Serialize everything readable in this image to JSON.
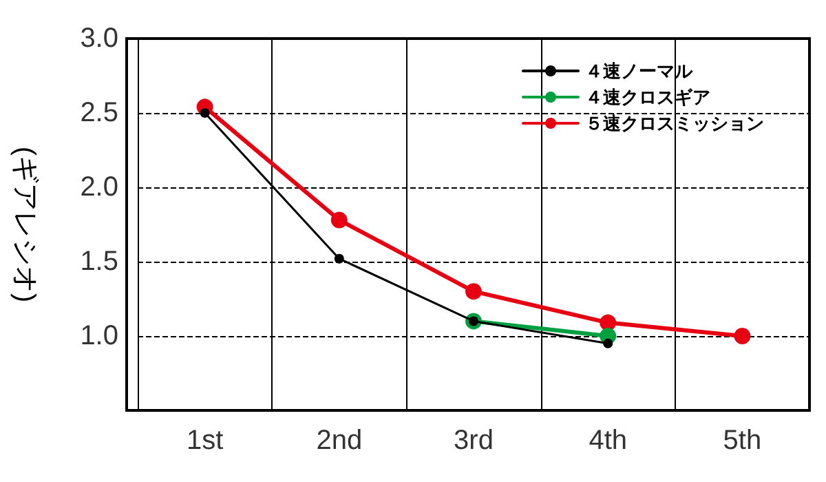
{
  "chart_data": {
    "type": "line",
    "ylabel": "(ギアレシオ)",
    "categories": [
      "1st",
      "2nd",
      "3rd",
      "4th",
      "5th"
    ],
    "series": [
      {
        "name": "４速ノーマル",
        "color": "#000000",
        "values": [
          2.5,
          1.52,
          1.1,
          0.95,
          null
        ]
      },
      {
        "name": "４速クロスギア",
        "color": "#00a040",
        "values": [
          null,
          null,
          1.1,
          1.0,
          null
        ]
      },
      {
        "name": "５速クロスミッション",
        "color": "#e60012",
        "values": [
          2.54,
          1.78,
          1.3,
          1.09,
          1.0
        ]
      }
    ],
    "ylim": [
      0.5,
      3.0
    ],
    "yticks": [
      {
        "value": 1.0,
        "label": "1.0"
      },
      {
        "value": 1.5,
        "label": "1.5"
      },
      {
        "value": 2.0,
        "label": "2.0"
      },
      {
        "value": 2.5,
        "label": "2.5"
      },
      {
        "value": 3.0,
        "label": "3.0"
      }
    ],
    "grid": true,
    "legend": "top right",
    "marker": "circle",
    "line_style": "solid"
  }
}
